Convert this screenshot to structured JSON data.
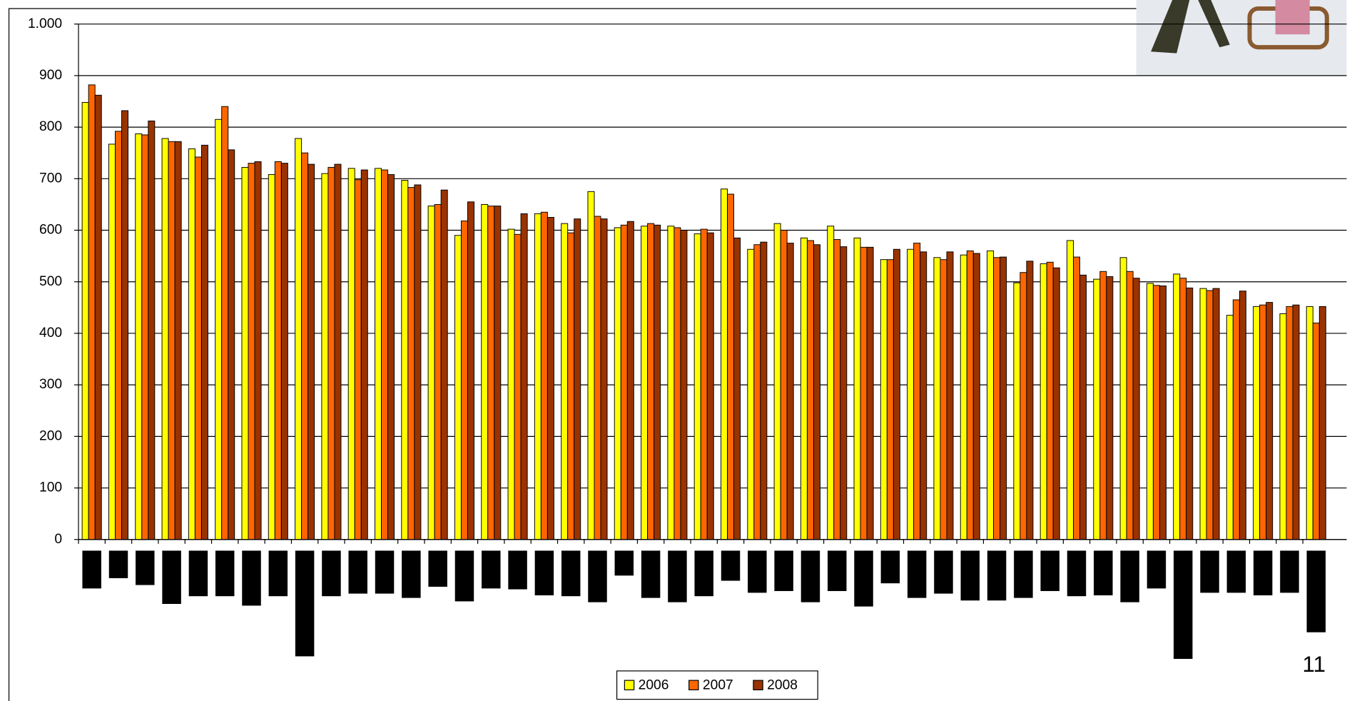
{
  "chart_data": {
    "type": "bar",
    "categories": [
      null,
      null,
      null,
      null,
      null,
      null,
      null,
      null,
      null,
      null,
      null,
      null,
      null,
      null,
      null,
      null,
      null,
      null,
      null,
      null,
      null,
      null,
      null,
      null,
      null,
      null,
      null,
      null,
      null,
      null,
      null,
      null,
      null,
      null,
      null,
      null,
      null,
      null,
      null,
      null,
      null,
      null,
      null,
      null,
      null,
      null,
      null
    ],
    "series": [
      {
        "name": "2006",
        "color": "#ffff00",
        "values": [
          848,
          767,
          787,
          778,
          758,
          815,
          722,
          708,
          778,
          710,
          720,
          720,
          697,
          647,
          590,
          650,
          602,
          632,
          613,
          675,
          605,
          608,
          608,
          593,
          680,
          563,
          613,
          585,
          608,
          585,
          543,
          563,
          547,
          552,
          560,
          498,
          535,
          580,
          505,
          547,
          497,
          515,
          487,
          435,
          452,
          438,
          452
        ]
      },
      {
        "name": "2007",
        "color": "#ff6600",
        "values": [
          882,
          792,
          785,
          772,
          742,
          840,
          730,
          733,
          750,
          722,
          698,
          717,
          683,
          650,
          618,
          647,
          592,
          635,
          595,
          627,
          610,
          613,
          605,
          602,
          670,
          572,
          600,
          580,
          582,
          567,
          543,
          575,
          543,
          560,
          547,
          518,
          538,
          548,
          520,
          520,
          493,
          507,
          483,
          465,
          455,
          452,
          420
        ]
      },
      {
        "name": "2008",
        "color": "#993300",
        "values": [
          862,
          832,
          812,
          772,
          765,
          756,
          733,
          730,
          728,
          728,
          717,
          708,
          688,
          678,
          655,
          647,
          632,
          625,
          622,
          622,
          617,
          610,
          600,
          595,
          585,
          577,
          575,
          572,
          568,
          567,
          563,
          558,
          558,
          555,
          548,
          540,
          527,
          513,
          510,
          507,
          492,
          488,
          487,
          482,
          460,
          455,
          452
        ]
      }
    ],
    "ylim": [
      0,
      1000
    ],
    "yticks": [
      0,
      100,
      200,
      300,
      400,
      500,
      600,
      700,
      800,
      900,
      {
        "value": 1000,
        "label": "1.000"
      }
    ],
    "grid": true,
    "legend": "bottom"
  },
  "page_number": "11"
}
